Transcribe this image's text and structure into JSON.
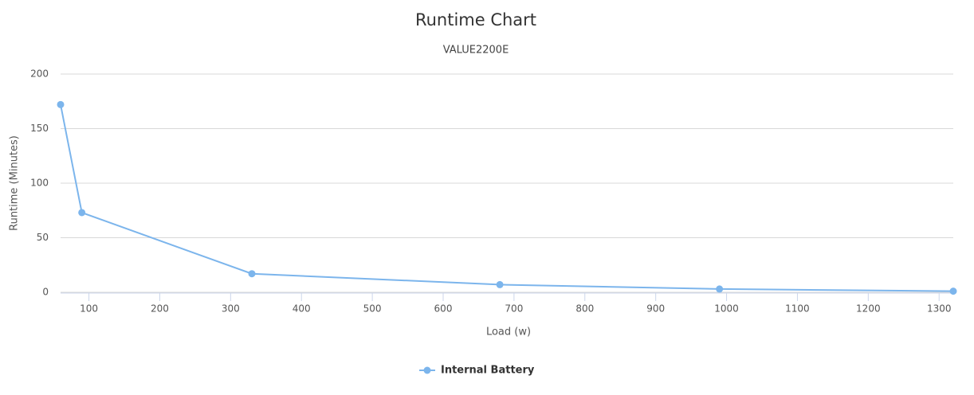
{
  "chart_data": {
    "type": "line",
    "title": "Runtime Chart",
    "subtitle": "VALUE2200E",
    "x_label": "Load (w)",
    "y_label": "Runtime (Minutes)",
    "x": [
      60,
      90,
      330,
      680,
      990,
      1320
    ],
    "series": [
      {
        "name": "Internal Battery",
        "color": "#7cb5ec",
        "values": [
          172,
          73,
          17,
          7,
          3,
          1
        ]
      }
    ],
    "xlim": [
      60,
      1320
    ],
    "xticks": [
      100,
      200,
      300,
      400,
      500,
      600,
      700,
      800,
      900,
      1000,
      1100,
      1200,
      1300
    ],
    "ylim": [
      0,
      200
    ],
    "yticks": [
      0,
      50,
      100,
      150,
      200
    ],
    "grid": true,
    "legend": "bottom"
  }
}
